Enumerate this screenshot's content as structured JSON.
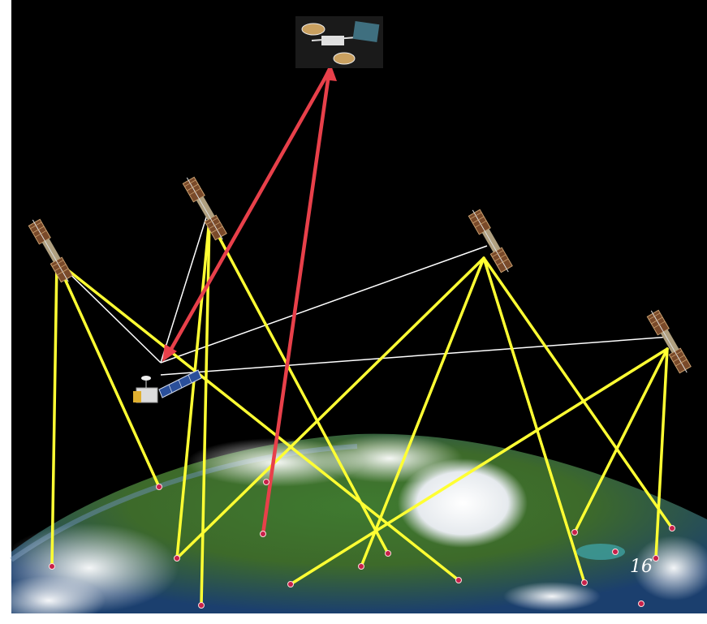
{
  "slide": {
    "page_number": "16"
  },
  "colors": {
    "space": "#000000",
    "earth_land": "#4f7a2a",
    "earth_ocean": "#1d4f86",
    "cloud": "#f2f4f6",
    "gps_link": "#ffff33",
    "crosslink": "#ffffff",
    "relay_link": "#e8404a",
    "ground_station": "#c8204a"
  },
  "icons": {
    "gps_satellite": "gps-satellite-icon",
    "relay_satellite": "relay-satellite-icon",
    "user_spacecraft": "earth-observation-satellite-icon",
    "ground_point": "ground-station-marker-icon"
  }
}
